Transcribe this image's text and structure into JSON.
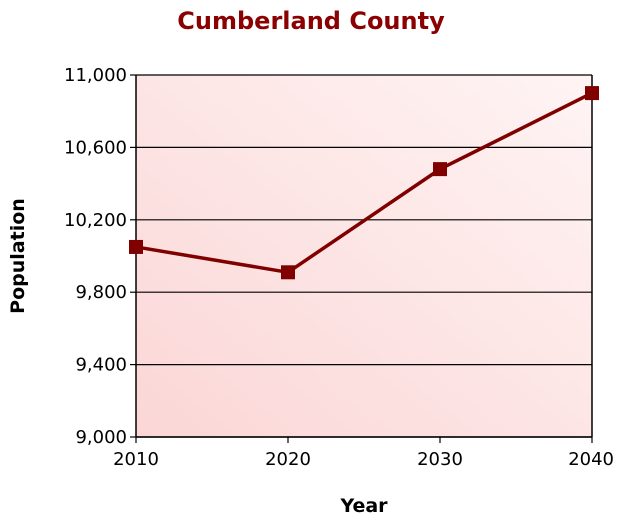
{
  "chart_data": {
    "type": "line",
    "title": "Cumberland County",
    "xlabel": "Year",
    "ylabel": "Population",
    "categories": [
      "2010",
      "2020",
      "2030",
      "2040"
    ],
    "y_ticks": [
      "9,000",
      "9,400",
      "9,800",
      "10,200",
      "10,600",
      "11,000"
    ],
    "y_tick_values": [
      9000,
      9400,
      9800,
      10200,
      10600,
      11000
    ],
    "ylim": [
      9000,
      11000
    ],
    "grid": true,
    "legend": "none",
    "series": [
      {
        "values": [
          10050,
          9910,
          10480,
          10900
        ],
        "color": "#800000",
        "marker": "square"
      }
    ],
    "colors": {
      "title": "#8b0000",
      "line": "#800000",
      "plot_bg_light": "#fff4f4",
      "plot_bg_dark": "#fbd6d6"
    }
  }
}
